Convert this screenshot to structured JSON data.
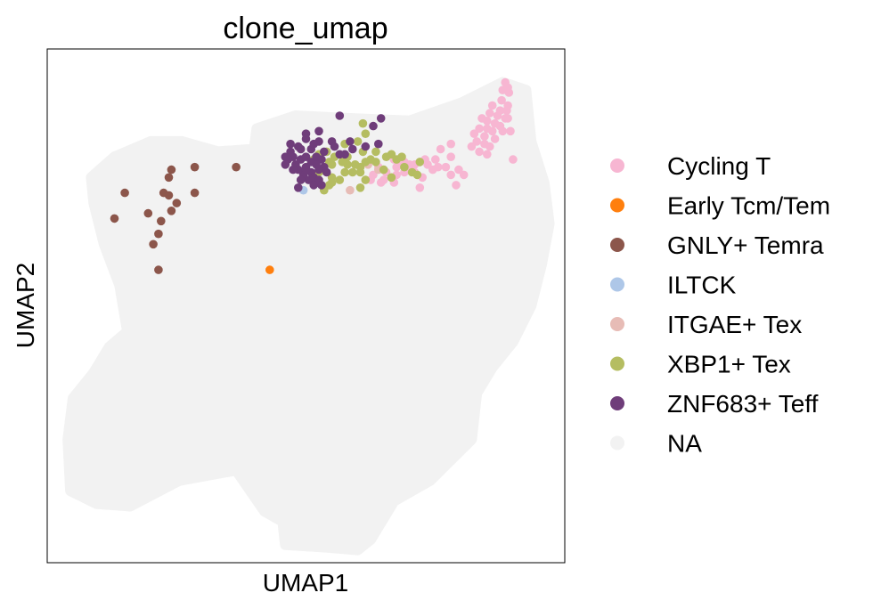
{
  "chart_data": {
    "type": "scatter",
    "title": "clone_umap",
    "xlabel": "UMAP1",
    "ylabel": "UMAP2",
    "xlim": [
      0,
      100
    ],
    "ylim": [
      0,
      100
    ],
    "grid": false,
    "ticks": false,
    "legend_position": "right",
    "background_color": "#f2f2f2",
    "background_regions": [
      [
        [
          40.5,
          84.5
        ],
        [
          48,
          87
        ],
        [
          58,
          86.5
        ],
        [
          70,
          86
        ],
        [
          80,
          89.5
        ],
        [
          88,
          93.5
        ],
        [
          92.5,
          92
        ],
        [
          93.5,
          82
        ],
        [
          96,
          74
        ],
        [
          97,
          66
        ],
        [
          95.5,
          58
        ],
        [
          93.5,
          50
        ],
        [
          90,
          43
        ],
        [
          86,
          38
        ],
        [
          83,
          33
        ],
        [
          82,
          24
        ],
        [
          78,
          20
        ],
        [
          74,
          16
        ],
        [
          67,
          12
        ],
        [
          62.5,
          4.5
        ],
        [
          60,
          2.5
        ],
        [
          54,
          3
        ],
        [
          46,
          3.5
        ],
        [
          45.5,
          8
        ],
        [
          42,
          10
        ],
        [
          36.5,
          18
        ],
        [
          25.5,
          16
        ],
        [
          16,
          11
        ],
        [
          9.5,
          11.5
        ],
        [
          4.5,
          14
        ],
        [
          4,
          24
        ],
        [
          5,
          32
        ],
        [
          9,
          37
        ],
        [
          12,
          42
        ],
        [
          15.5,
          45
        ],
        [
          14,
          54
        ],
        [
          11,
          62
        ],
        [
          9,
          70
        ],
        [
          8.5,
          75
        ],
        [
          13,
          79
        ],
        [
          20,
          82
        ],
        [
          26,
          82
        ],
        [
          33,
          80
        ],
        [
          40,
          80.5
        ],
        [
          40.5,
          84.5
        ]
      ]
    ],
    "series": [
      {
        "name": "Cycling T",
        "color": "#f7b6d2",
        "points": [
          [
            88,
            92
          ],
          [
            89,
            92.5
          ],
          [
            88.5,
            93.5
          ],
          [
            89.2,
            91.5
          ],
          [
            87.8,
            90
          ],
          [
            89,
            89
          ],
          [
            87.5,
            88
          ],
          [
            88.8,
            88
          ],
          [
            86,
            89
          ],
          [
            85.5,
            87.5
          ],
          [
            87,
            87
          ],
          [
            88.5,
            86.5
          ],
          [
            85,
            86
          ],
          [
            84,
            86.5
          ],
          [
            86.5,
            85.5
          ],
          [
            87.5,
            85
          ],
          [
            89,
            86.5
          ],
          [
            83.5,
            84.5
          ],
          [
            85,
            84.5
          ],
          [
            86,
            84
          ],
          [
            88,
            84
          ],
          [
            84.5,
            83
          ],
          [
            86.5,
            82.5
          ],
          [
            83,
            82
          ],
          [
            84.5,
            81.5
          ],
          [
            85.5,
            81
          ],
          [
            82,
            81
          ],
          [
            83.5,
            80
          ],
          [
            85,
            79.5
          ],
          [
            82.5,
            83.5
          ],
          [
            89.5,
            84
          ],
          [
            90,
            78.5
          ],
          [
            76,
            80.5
          ],
          [
            78,
            79
          ],
          [
            75,
            78.5
          ],
          [
            73,
            78.5
          ],
          [
            72,
            78
          ],
          [
            71,
            77.5
          ],
          [
            70,
            77.5
          ],
          [
            69,
            78
          ],
          [
            68,
            78
          ],
          [
            67,
            78.5
          ],
          [
            73.5,
            77.5
          ],
          [
            75.5,
            77
          ],
          [
            77,
            77
          ],
          [
            79.5,
            76.5
          ],
          [
            80.5,
            75.5
          ],
          [
            74.5,
            76.5
          ],
          [
            71,
            76
          ],
          [
            70,
            76.5
          ],
          [
            67.5,
            77
          ],
          [
            69,
            76
          ],
          [
            72.5,
            75
          ],
          [
            67.5,
            75.5
          ],
          [
            65.5,
            76
          ],
          [
            64,
            77
          ],
          [
            63,
            75.5
          ],
          [
            62.5,
            74.5
          ],
          [
            64.5,
            74
          ],
          [
            67,
            74
          ],
          [
            72,
            73
          ],
          [
            79,
            73.5
          ],
          [
            65,
            74.5
          ],
          [
            78,
            75.5
          ],
          [
            78,
            81.5
          ]
        ]
      },
      {
        "name": "Early Tcm/Tem",
        "color": "#ff7f0e",
        "points": [
          [
            43,
            57
          ]
        ]
      },
      {
        "name": "GNLY+ Temra",
        "color": "#8c564b",
        "points": [
          [
            36.5,
            77
          ],
          [
            28.5,
            77
          ],
          [
            24,
            76.5
          ],
          [
            23.5,
            75
          ],
          [
            22.5,
            72
          ],
          [
            28.5,
            72
          ],
          [
            23.5,
            71.5
          ],
          [
            15,
            72
          ],
          [
            25,
            70
          ],
          [
            19.5,
            68
          ],
          [
            24,
            68.5
          ],
          [
            22,
            66.5
          ],
          [
            13,
            67
          ],
          [
            21.5,
            64
          ],
          [
            20.5,
            62
          ],
          [
            21.5,
            57
          ]
        ]
      },
      {
        "name": "ILTCK",
        "color": "#aec7e8",
        "points": [
          [
            49.5,
            72.5
          ]
        ]
      },
      {
        "name": "ITGAE+ Tex",
        "color": "#e7bcb6",
        "points": [
          [
            58.5,
            72.5
          ],
          [
            64,
            76.5
          ],
          [
            62,
            77.5
          ]
        ]
      },
      {
        "name": "XBP1+ Tex",
        "color": "#b5bd61",
        "points": [
          [
            61,
            85.5
          ],
          [
            60,
            82
          ],
          [
            61.5,
            83.5
          ],
          [
            63.5,
            80
          ],
          [
            61,
            80
          ],
          [
            61.5,
            78
          ],
          [
            62.5,
            78.5
          ],
          [
            63.5,
            78
          ],
          [
            60.5,
            77
          ],
          [
            59.5,
            77.5
          ],
          [
            60.5,
            76
          ],
          [
            59,
            76
          ],
          [
            57.5,
            76
          ],
          [
            58,
            77.5
          ],
          [
            58,
            79
          ],
          [
            61.5,
            74.5
          ],
          [
            60.5,
            73
          ],
          [
            55,
            77.5
          ],
          [
            55,
            75
          ],
          [
            56.5,
            74.5
          ],
          [
            55,
            74
          ],
          [
            54.5,
            73.5
          ],
          [
            53.5,
            72.5
          ],
          [
            54.5,
            78
          ],
          [
            54,
            80
          ],
          [
            57.5,
            81.5
          ],
          [
            65.5,
            79
          ],
          [
            66.5,
            79.5
          ],
          [
            67.5,
            78.5
          ],
          [
            69,
            77
          ],
          [
            66.5,
            75
          ],
          [
            65,
            76.5
          ],
          [
            68.5,
            79
          ],
          [
            72,
            78
          ],
          [
            70.5,
            76
          ],
          [
            71.5,
            75.5
          ],
          [
            52.5,
            76
          ],
          [
            51.5,
            78.5
          ],
          [
            52.5,
            79.5
          ],
          [
            55.5,
            79
          ],
          [
            57,
            78
          ]
        ]
      },
      {
        "name": "ZNF683+ Teff",
        "color": "#6f3d7a",
        "points": [
          [
            52.5,
            84
          ],
          [
            56.5,
            87
          ],
          [
            48.5,
            81
          ],
          [
            51,
            80.5
          ],
          [
            50,
            83.5
          ],
          [
            52.5,
            82
          ],
          [
            53.5,
            80
          ],
          [
            55,
            82
          ],
          [
            56.5,
            79.5
          ],
          [
            55.5,
            81
          ],
          [
            57.5,
            79.5
          ],
          [
            59,
            80.5
          ],
          [
            61.5,
            81
          ],
          [
            64,
            81.5
          ],
          [
            63,
            85
          ],
          [
            64.5,
            86.5
          ],
          [
            58.5,
            82
          ],
          [
            47,
            80
          ],
          [
            47.5,
            79
          ],
          [
            46.5,
            78.5
          ],
          [
            48,
            77.5
          ],
          [
            49,
            78.5
          ],
          [
            50,
            79
          ],
          [
            51,
            78
          ],
          [
            52,
            79
          ],
          [
            53,
            78.5
          ],
          [
            53.5,
            77
          ],
          [
            52,
            77.5
          ],
          [
            51,
            76
          ],
          [
            50,
            77
          ],
          [
            49.5,
            75.5
          ],
          [
            48.5,
            76.5
          ],
          [
            47.5,
            76.5
          ],
          [
            46,
            77.5
          ],
          [
            46,
            79
          ],
          [
            47,
            81.5
          ],
          [
            49,
            80.5
          ],
          [
            50.5,
            74.5
          ],
          [
            51.5,
            75
          ],
          [
            52.5,
            74.5
          ],
          [
            49,
            74.5
          ],
          [
            50,
            76.5
          ],
          [
            51.5,
            73.5
          ],
          [
            53,
            73.5
          ],
          [
            48.5,
            73
          ],
          [
            52.5,
            76.5
          ],
          [
            50,
            82.5
          ],
          [
            51.5,
            81.5
          ],
          [
            54,
            76
          ]
        ]
      },
      {
        "name": "NA",
        "color": "#f2f2f2",
        "points": []
      }
    ]
  }
}
